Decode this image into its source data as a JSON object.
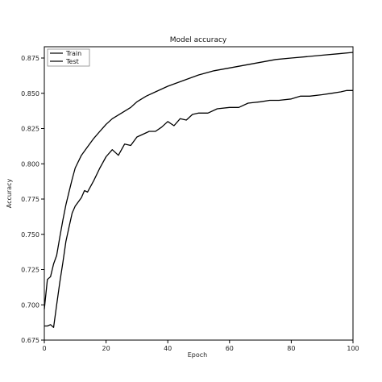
{
  "chart_data": {
    "type": "line",
    "title": "Model accuracy",
    "xlabel": "Epoch",
    "ylabel": "Accuracy",
    "xlim": [
      0,
      100
    ],
    "ylim": [
      0.675,
      0.883
    ],
    "xticks": [
      0,
      20,
      40,
      60,
      80,
      100
    ],
    "xtick_labels": [
      "0",
      "20",
      "40",
      "60",
      "80",
      "100"
    ],
    "yticks": [
      0.675,
      0.7,
      0.725,
      0.75,
      0.775,
      0.8,
      0.825,
      0.85,
      0.875
    ],
    "ytick_labels": [
      "0.675",
      "0.700",
      "0.725",
      "0.750",
      "0.775",
      "0.800",
      "0.825",
      "0.850",
      "0.875"
    ],
    "grid": false,
    "legend_position": "top-left",
    "line_color": "#000000",
    "series": [
      {
        "name": "Train",
        "x": [
          0,
          1,
          2,
          3,
          4,
          5,
          6,
          7,
          8,
          9,
          10,
          12,
          14,
          16,
          18,
          20,
          22,
          25,
          28,
          30,
          33,
          36,
          40,
          45,
          50,
          55,
          60,
          65,
          70,
          75,
          80,
          85,
          90,
          95,
          100
        ],
        "y": [
          0.697,
          0.718,
          0.72,
          0.729,
          0.735,
          0.748,
          0.76,
          0.771,
          0.78,
          0.789,
          0.797,
          0.806,
          0.812,
          0.818,
          0.823,
          0.828,
          0.832,
          0.836,
          0.84,
          0.844,
          0.848,
          0.851,
          0.855,
          0.859,
          0.863,
          0.866,
          0.868,
          0.87,
          0.872,
          0.874,
          0.875,
          0.876,
          0.877,
          0.878,
          0.879
        ]
      },
      {
        "name": "Test",
        "x": [
          0,
          1,
          2,
          3,
          4,
          5,
          6,
          7,
          8,
          9,
          10,
          12,
          13,
          14,
          16,
          18,
          20,
          22,
          24,
          26,
          28,
          30,
          32,
          34,
          36,
          38,
          40,
          42,
          44,
          46,
          48,
          50,
          53,
          56,
          60,
          63,
          66,
          70,
          73,
          76,
          80,
          83,
          86,
          90,
          93,
          96,
          98,
          100
        ],
        "y": [
          0.685,
          0.685,
          0.686,
          0.684,
          0.7,
          0.716,
          0.73,
          0.745,
          0.755,
          0.765,
          0.77,
          0.776,
          0.781,
          0.78,
          0.788,
          0.797,
          0.805,
          0.81,
          0.806,
          0.814,
          0.813,
          0.819,
          0.821,
          0.823,
          0.823,
          0.826,
          0.83,
          0.827,
          0.832,
          0.831,
          0.835,
          0.836,
          0.836,
          0.839,
          0.84,
          0.84,
          0.843,
          0.844,
          0.845,
          0.845,
          0.846,
          0.848,
          0.848,
          0.849,
          0.85,
          0.851,
          0.852,
          0.852
        ]
      }
    ]
  }
}
